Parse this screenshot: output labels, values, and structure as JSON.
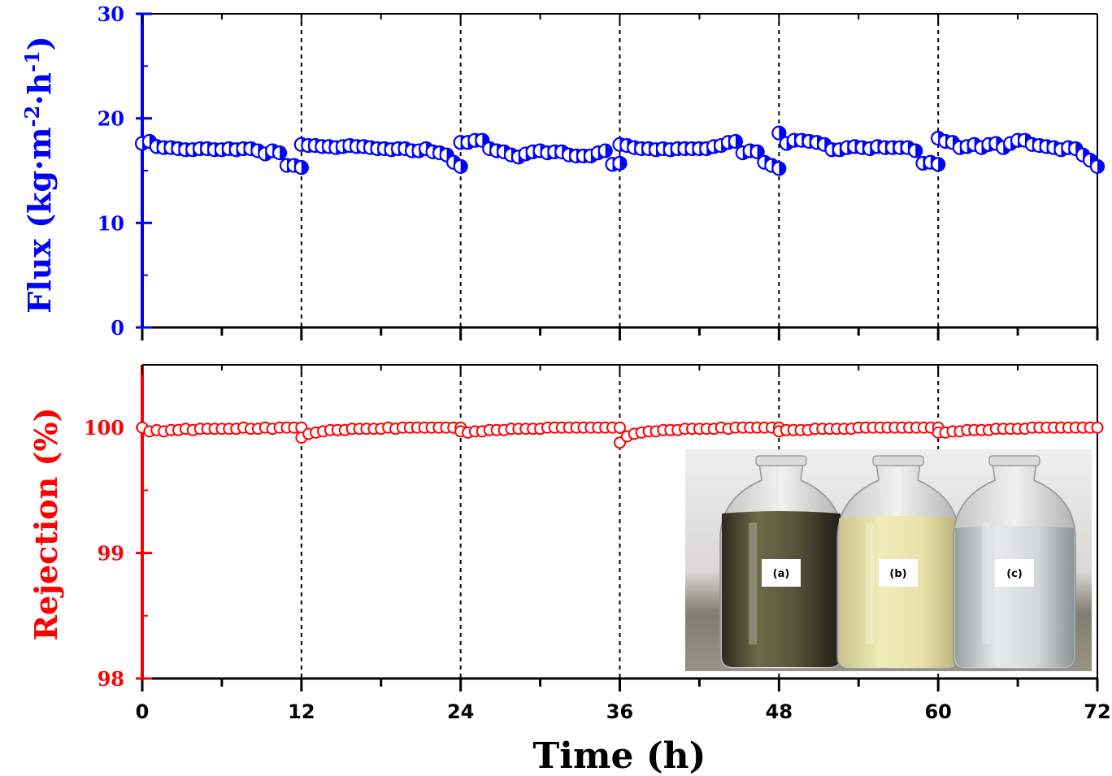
{
  "chart_data": [
    {
      "type": "scatter",
      "panel": "top",
      "series_color": "#0000ff",
      "xlabel": "Time (h)",
      "ylabel": {
        "main": "Flux (kg·m",
        "sup1": "-2",
        "mid": "·h",
        "sup2": "-1",
        "end": ")"
      },
      "xlim": [
        0,
        72
      ],
      "ylim": [
        0,
        30
      ],
      "x_ticks": [
        "0",
        "12",
        "24",
        "36",
        "48",
        "60",
        "72"
      ],
      "y_ticks": [
        "0",
        "10",
        "20",
        "30"
      ],
      "y_tick_values": [
        0,
        10,
        20,
        30
      ],
      "vlines": [
        12,
        24,
        36,
        48,
        60
      ],
      "segments": [
        {
          "start": 0,
          "end": 12,
          "values": [
            17.6,
            17.8,
            17.3,
            17.2,
            17.2,
            17.1,
            17.0,
            17.0,
            17.1,
            17.1,
            17.0,
            17.0,
            17.1,
            17.0,
            17.1,
            17.1,
            16.9,
            16.6,
            16.9,
            16.7,
            15.5,
            15.5,
            15.3
          ]
        },
        {
          "start": 12,
          "end": 24,
          "values": [
            17.5,
            17.4,
            17.4,
            17.3,
            17.3,
            17.2,
            17.3,
            17.4,
            17.3,
            17.3,
            17.2,
            17.1,
            17.1,
            17.0,
            17.1,
            17.1,
            16.9,
            16.9,
            17.1,
            16.8,
            16.7,
            16.5,
            15.8,
            15.4
          ]
        },
        {
          "start": 24,
          "end": 36,
          "values": [
            17.7,
            17.7,
            17.9,
            17.9,
            17.1,
            16.9,
            16.8,
            16.5,
            16.3,
            16.6,
            16.8,
            16.9,
            16.7,
            16.8,
            16.8,
            16.5,
            16.4,
            16.4,
            16.4,
            16.7,
            16.9,
            15.6,
            15.7
          ]
        },
        {
          "start": 36,
          "end": 48,
          "values": [
            17.5,
            17.4,
            17.2,
            17.1,
            17.1,
            17.0,
            17.1,
            17.0,
            17.1,
            17.1,
            17.1,
            17.1,
            17.1,
            17.3,
            17.4,
            17.7,
            17.8,
            16.7,
            16.9,
            16.8,
            15.8,
            15.5,
            15.2
          ]
        },
        {
          "start": 48,
          "end": 60,
          "values": [
            18.6,
            17.6,
            17.9,
            17.9,
            17.8,
            17.7,
            17.5,
            17.0,
            17.0,
            17.2,
            17.3,
            17.2,
            17.1,
            17.3,
            17.2,
            17.2,
            17.2,
            17.2,
            16.9,
            15.7,
            15.8,
            15.6
          ]
        },
        {
          "start": 60,
          "end": 72,
          "values": [
            18.1,
            17.8,
            17.7,
            17.2,
            17.3,
            17.5,
            17.2,
            17.5,
            17.6,
            17.2,
            17.6,
            17.9,
            17.9,
            17.5,
            17.4,
            17.3,
            17.2,
            17.0,
            17.2,
            17.1,
            16.5,
            16.0,
            15.4
          ]
        }
      ]
    },
    {
      "type": "scatter",
      "panel": "bottom",
      "series_color": "#ff0000",
      "ylabel": "Rejection (%)",
      "xlim": [
        0,
        72
      ],
      "ylim": [
        98,
        100.5
      ],
      "y_ticks": [
        "98",
        "99",
        "100"
      ],
      "y_tick_values": [
        98,
        99,
        100
      ],
      "segments": [
        {
          "start": 0,
          "end": 12,
          "values": [
            100.0,
            99.97,
            99.98,
            99.97,
            99.98,
            99.98,
            99.99,
            99.98,
            99.99,
            99.99,
            99.99,
            99.99,
            99.99,
            99.99,
            100.0,
            99.99,
            99.99,
            100.0,
            99.99,
            100.0,
            100.0,
            100.0,
            100.0
          ]
        },
        {
          "start": 12,
          "end": 24,
          "values": [
            99.92,
            99.95,
            99.96,
            99.97,
            99.98,
            99.98,
            99.98,
            99.99,
            99.99,
            99.99,
            99.99,
            99.99,
            100.0,
            99.99,
            100.0,
            100.0,
            100.0,
            100.0,
            100.0,
            100.0,
            100.0,
            100.0,
            100.0
          ]
        },
        {
          "start": 24,
          "end": 36,
          "values": [
            99.97,
            99.96,
            99.97,
            99.97,
            99.98,
            99.98,
            99.98,
            99.99,
            99.99,
            99.99,
            99.99,
            99.99,
            100.0,
            100.0,
            100.0,
            100.0,
            100.0,
            100.0,
            100.0,
            100.0,
            100.0,
            100.0,
            100.0
          ]
        },
        {
          "start": 36,
          "end": 48,
          "values": [
            99.88,
            99.93,
            99.95,
            99.96,
            99.97,
            99.97,
            99.98,
            99.98,
            99.98,
            99.99,
            99.99,
            99.99,
            99.99,
            99.99,
            100.0,
            99.99,
            100.0,
            100.0,
            100.0,
            100.0,
            100.0,
            100.0,
            100.0
          ]
        },
        {
          "start": 48,
          "end": 60,
          "values": [
            99.97,
            99.98,
            99.98,
            99.98,
            99.98,
            99.99,
            99.99,
            99.99,
            99.99,
            99.99,
            99.99,
            100.0,
            100.0,
            100.0,
            100.0,
            100.0,
            100.0,
            100.0,
            100.0,
            100.0,
            100.0,
            100.0,
            100.0
          ]
        },
        {
          "start": 60,
          "end": 72,
          "values": [
            99.96,
            99.96,
            99.97,
            99.97,
            99.98,
            99.98,
            99.98,
            99.98,
            99.99,
            99.99,
            99.99,
            99.99,
            99.99,
            100.0,
            100.0,
            100.0,
            100.0,
            100.0,
            100.0,
            100.0,
            100.0,
            100.0,
            100.0
          ]
        }
      ]
    }
  ],
  "inset": {
    "labels": [
      "(a)",
      "(b)",
      "(c)"
    ]
  }
}
